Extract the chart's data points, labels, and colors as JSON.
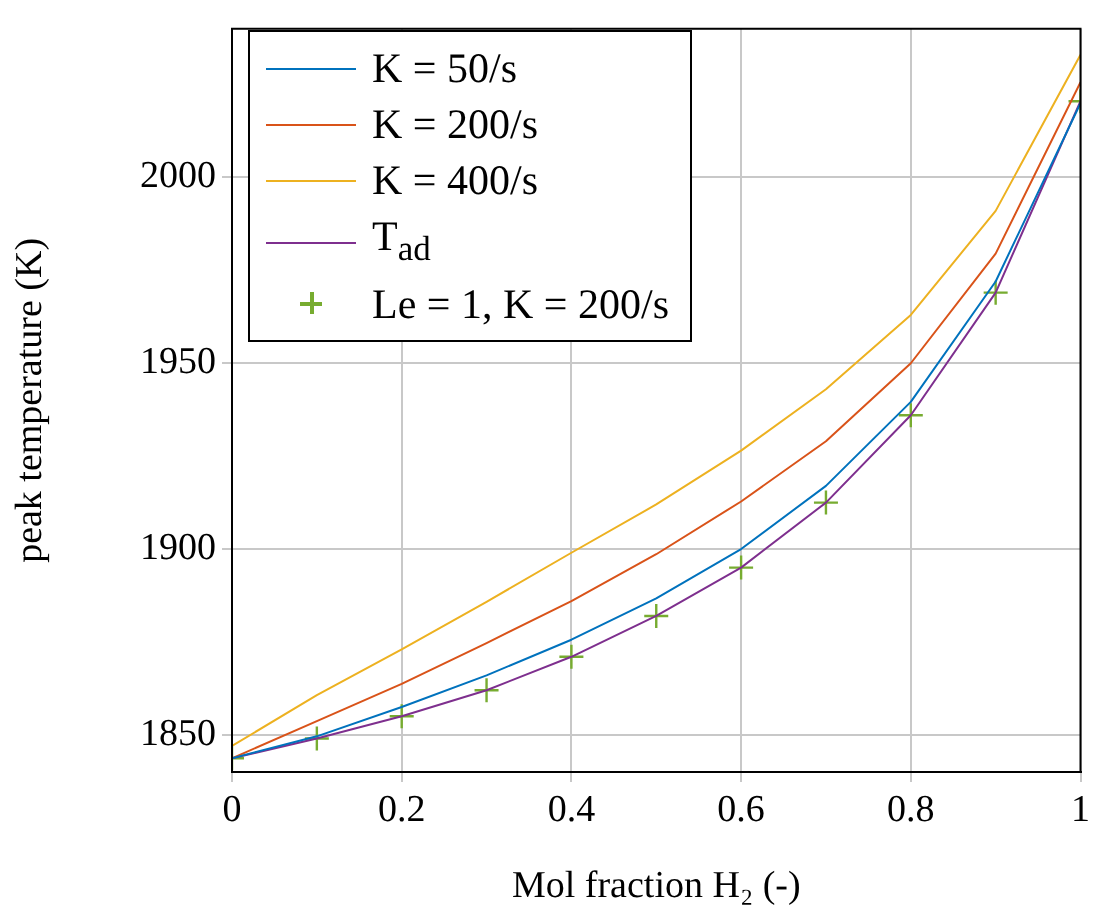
{
  "chart_data": {
    "type": "line",
    "xlabel": "Mol fraction H₂ (-)",
    "ylabel": "peak temperature (K)",
    "x": [
      0,
      0.1,
      0.2,
      0.3,
      0.4,
      0.5,
      0.6,
      0.7,
      0.8,
      0.9,
      1
    ],
    "series": [
      {
        "name": "K = 50/s",
        "color": "#0072bd",
        "values": [
          1843.7,
          1849.6,
          1857.5,
          1866,
          1875.6,
          1886.7,
          1900,
          1917,
          1939.6,
          1972,
          2020
        ]
      },
      {
        "name": "K = 200/s",
        "color": "#d95319",
        "values": [
          1843.7,
          1853.7,
          1863.7,
          1874.7,
          1886,
          1898.6,
          1912.8,
          1929,
          1950,
          1979.5,
          2025.6
        ]
      },
      {
        "name": "K = 400/s",
        "color": "#edb120",
        "values": [
          1847,
          1860.7,
          1873,
          1885.8,
          1899,
          1912,
          1926.5,
          1943,
          1963,
          1991,
          2033
        ]
      },
      {
        "name": "T$_{ad}$",
        "color": "#7e2f8e",
        "values": [
          1843.7,
          1849,
          1855,
          1862,
          1871,
          1882,
          1895,
          1912.5,
          1936,
          1969,
          2020.5
        ]
      },
      {
        "name": "Le = 1, K = 200/s",
        "type": "scatter",
        "marker": "cross",
        "color": "#77ac30",
        "values": [
          1843.7,
          1849,
          1855,
          1862,
          1871,
          1882,
          1895,
          1912.5,
          1936,
          1969,
          2020.5
        ]
      }
    ],
    "xlim": [
      0,
      1
    ],
    "xticks": [
      0,
      0.2,
      0.4,
      0.6,
      0.8,
      1
    ],
    "ylim": [
      1840,
      2040
    ],
    "yticks": [
      1850,
      1900,
      1950,
      2000
    ],
    "grid": true,
    "legend": "top left",
    "marker": "none",
    "line_style": "solid"
  }
}
